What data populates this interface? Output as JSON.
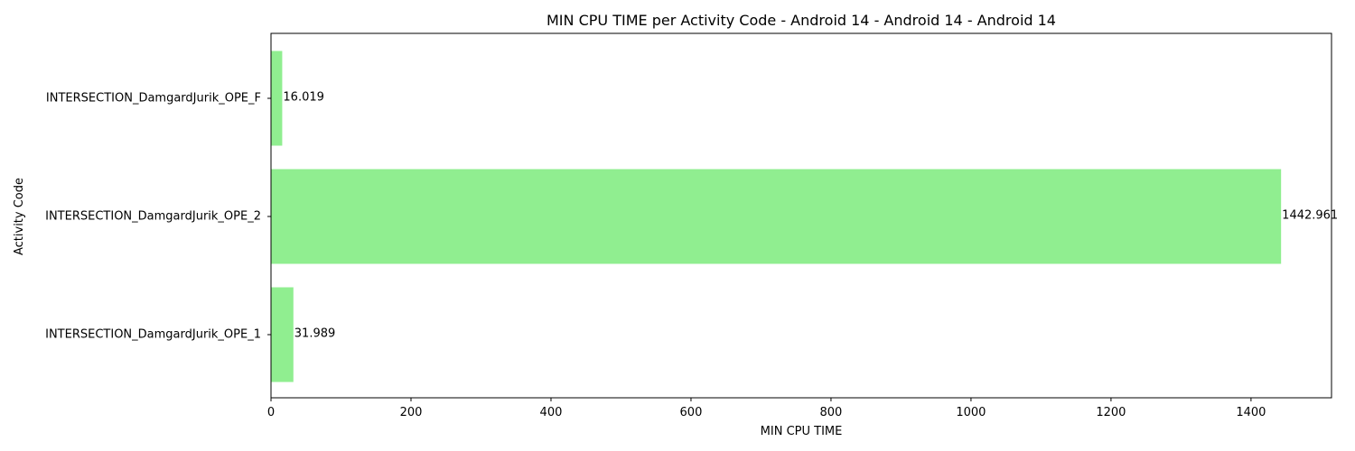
{
  "chart_data": {
    "type": "bar",
    "orientation": "horizontal",
    "title": "MIN CPU TIME per Activity Code - Android 14 - Android 14 - Android 14",
    "xlabel": "MIN CPU TIME",
    "ylabel": "Activity Code",
    "categories": [
      "INTERSECTION_DamgardJurik_OPE_F",
      "INTERSECTION_DamgardJurik_OPE_2",
      "INTERSECTION_DamgardJurik_OPE_1"
    ],
    "values": [
      16.019,
      1442.961,
      31.989
    ],
    "data_labels": [
      "16.019",
      "1442.961",
      "31.989"
    ],
    "xlim": [
      0,
      1515
    ],
    "xticks": [
      0,
      200,
      400,
      600,
      800,
      1000,
      1200,
      1400
    ],
    "xtick_labels": [
      "0",
      "200",
      "400",
      "600",
      "800",
      "1000",
      "1200",
      "1400"
    ],
    "grid": false,
    "bar_color": "#90ee90"
  }
}
